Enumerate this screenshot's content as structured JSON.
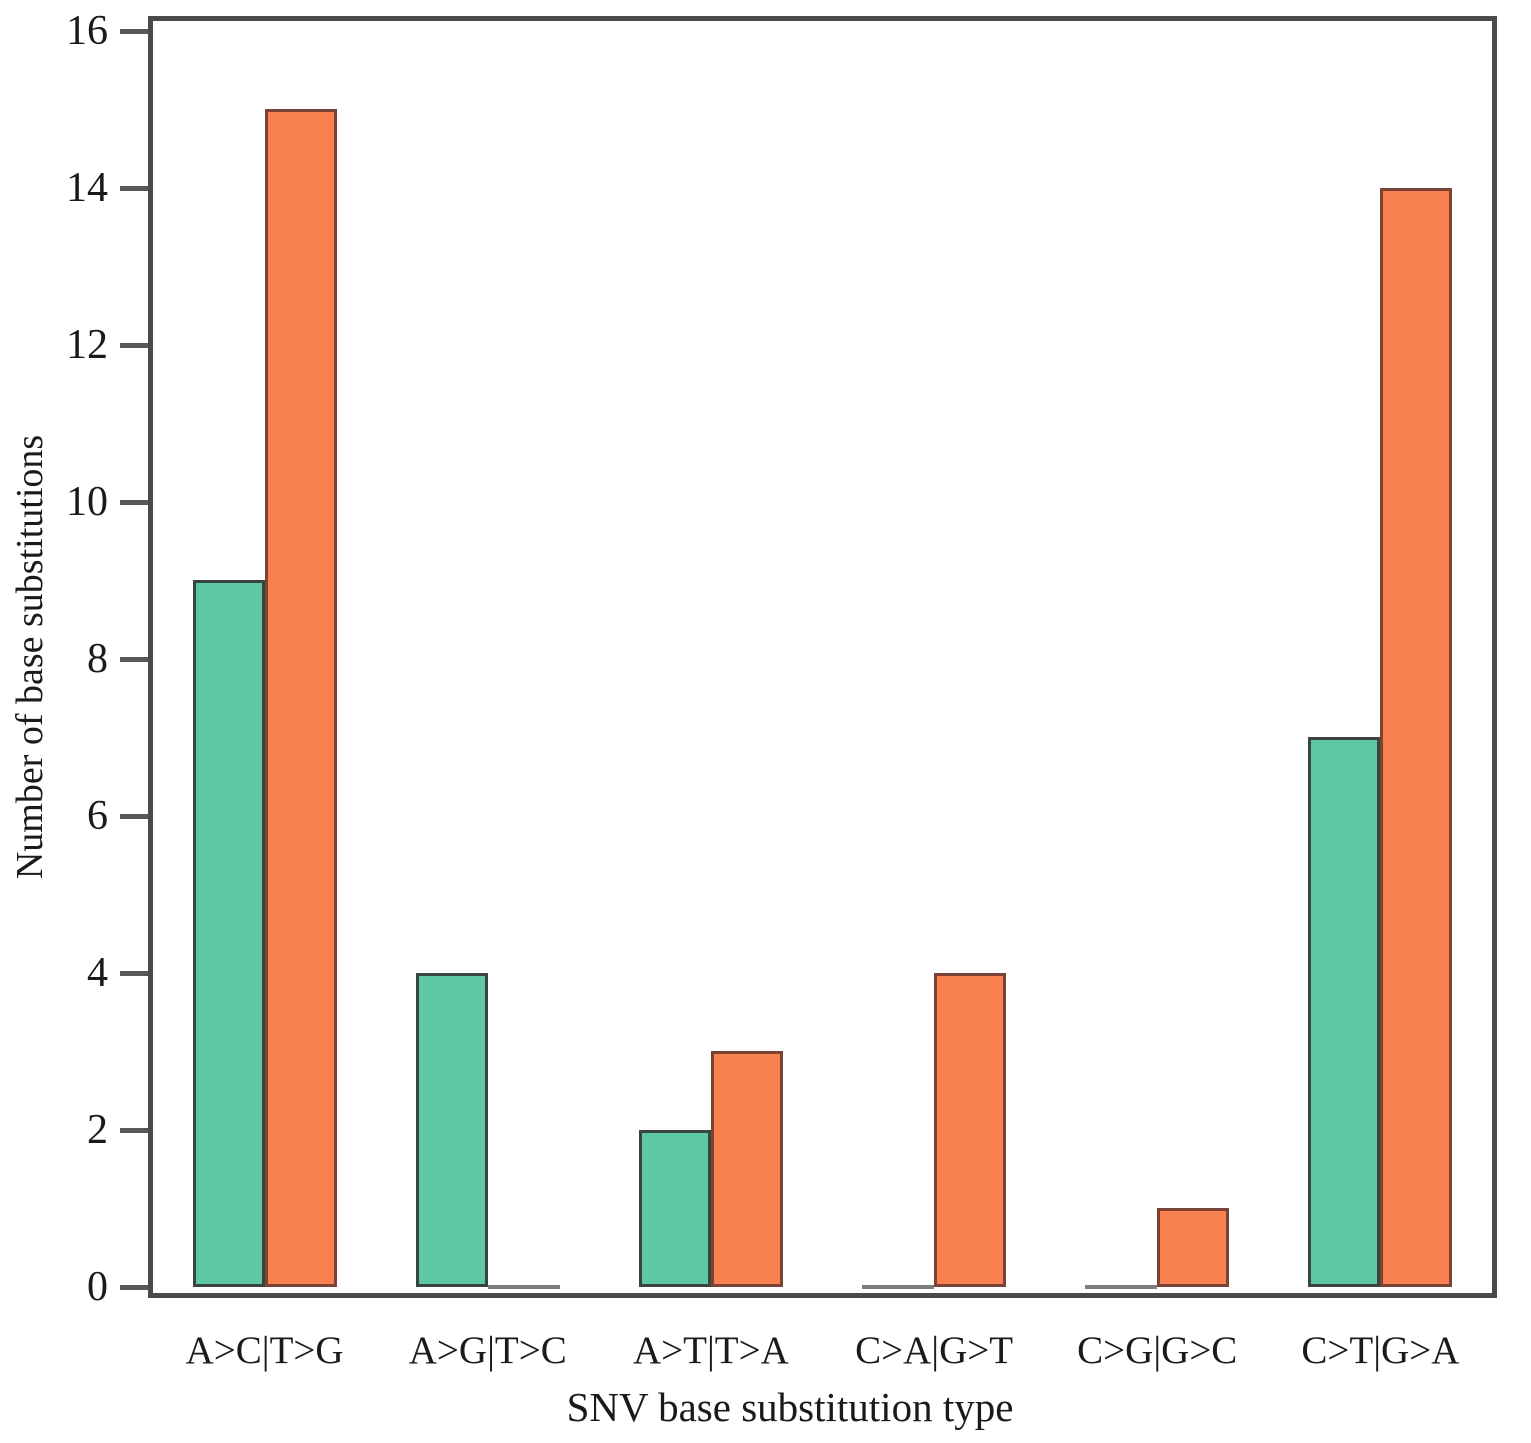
{
  "figure": {
    "background": "#ffffff",
    "axis_frame_color": "#4a4a4a",
    "tick_color": "#58585a",
    "text_color": "#1a1a1a",
    "zero_bar_color": "#7d7d7d"
  },
  "chart_data": {
    "type": "bar",
    "title": "",
    "xlabel": "SNV base substitution type",
    "ylabel": "Number of base substitutions",
    "categories": [
      "A>C|T>G",
      "A>G|T>C",
      "A>T|T>A",
      "C>A|G>T",
      "C>G|G>C",
      "C>T|G>A"
    ],
    "series": [
      {
        "name": "teal",
        "color": "#5cc9a4",
        "edge_color": "#3a453f",
        "values": [
          9,
          4,
          2,
          0,
          0,
          7
        ]
      },
      {
        "name": "orange",
        "color": "#f8814f",
        "edge_color": "#7a4336",
        "values": [
          15,
          0,
          3,
          4,
          1,
          14
        ]
      }
    ],
    "ylim": [
      0,
      16
    ],
    "yticks": [
      0,
      2,
      4,
      6,
      8,
      10,
      12,
      14,
      16
    ],
    "grid": false,
    "legend": "none",
    "bars_per_group": 2,
    "zero_value_rendering": "flat gray line at baseline"
  }
}
